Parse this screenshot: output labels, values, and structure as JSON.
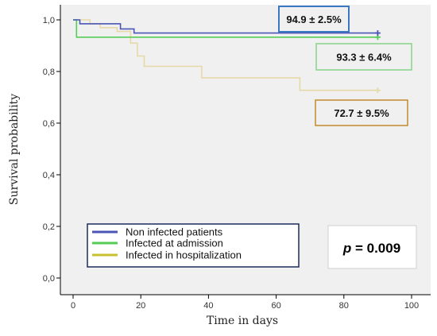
{
  "chart_data": {
    "type": "line",
    "title": "",
    "xlabel": "Time in days",
    "ylabel": "Survival probability",
    "xlim": [
      0,
      100
    ],
    "ylim": [
      0,
      1.0
    ],
    "xticks": [
      "0",
      "20",
      "40",
      "60",
      "80",
      "100"
    ],
    "yticks": [
      "0,0",
      "0,2",
      "0,4",
      "0,6",
      "0,8",
      "1,0"
    ],
    "grid": false,
    "legend_position": "bottom-left",
    "series": [
      {
        "name": "Non infected patients",
        "color": "#4a55b5",
        "step_points": [
          [
            0,
            1.0
          ],
          [
            2,
            1.0
          ],
          [
            2,
            0.985
          ],
          [
            14,
            0.985
          ],
          [
            14,
            0.965
          ],
          [
            18,
            0.965
          ],
          [
            18,
            0.949
          ],
          [
            90,
            0.949
          ]
        ],
        "censor": [
          90,
          0.949
        ]
      },
      {
        "name": "Infected at admission",
        "color": "#55cc55",
        "step_points": [
          [
            0,
            1.0
          ],
          [
            1,
            1.0
          ],
          [
            1,
            0.933
          ],
          [
            90,
            0.933
          ]
        ],
        "censor": [
          90,
          0.933
        ]
      },
      {
        "name": "Infected in hospitalization",
        "color": "#e6d9a8",
        "step_points": [
          [
            0,
            1.0
          ],
          [
            5,
            1.0
          ],
          [
            5,
            0.985
          ],
          [
            8,
            0.985
          ],
          [
            8,
            0.97
          ],
          [
            13,
            0.97
          ],
          [
            13,
            0.955
          ],
          [
            17,
            0.955
          ],
          [
            17,
            0.91
          ],
          [
            19,
            0.91
          ],
          [
            19,
            0.86
          ],
          [
            21,
            0.86
          ],
          [
            21,
            0.82
          ],
          [
            38,
            0.82
          ],
          [
            38,
            0.775
          ],
          [
            67,
            0.775
          ],
          [
            67,
            0.727
          ],
          [
            90,
            0.727
          ]
        ],
        "censor": [
          90,
          0.727
        ]
      }
    ],
    "annotations": [
      {
        "text": "94.9 ± 2.5%",
        "border_color": "#3a78c0"
      },
      {
        "text": "93.3 ± 6.4%",
        "border_color": "#88d488"
      },
      {
        "text": "72.7 ± 9.5%",
        "border_color": "#c08a2a"
      }
    ],
    "p_value": {
      "label": "p",
      "rest": " = 0.009"
    }
  }
}
